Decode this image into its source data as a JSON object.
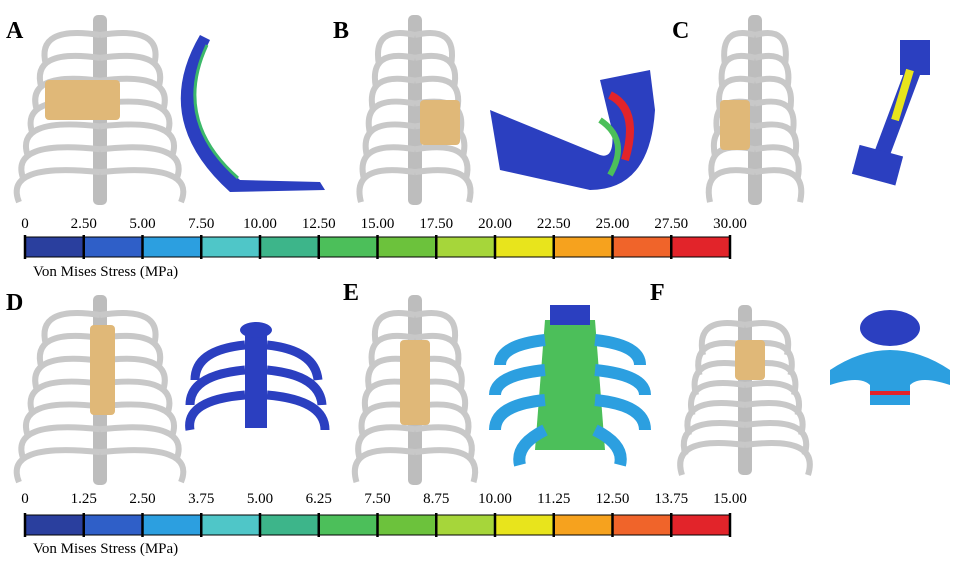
{
  "panels": [
    {
      "label": "A"
    },
    {
      "label": "B"
    },
    {
      "label": "C"
    },
    {
      "label": "D"
    },
    {
      "label": "E"
    },
    {
      "label": "F"
    }
  ],
  "colorbars": [
    {
      "ticks": [
        "0",
        "2.50",
        "5.00",
        "7.50",
        "10.00",
        "12.50",
        "15.00",
        "17.50",
        "20.00",
        "22.50",
        "25.00",
        "27.50",
        "30.00"
      ],
      "caption": "Von Mises Stress (MPa)"
    },
    {
      "ticks": [
        "0",
        "1.25",
        "2.50",
        "3.75",
        "5.00",
        "6.25",
        "7.50",
        "8.75",
        "10.00",
        "11.25",
        "12.50",
        "13.75",
        "15.00"
      ],
      "caption": "Von Mises Stress (MPa)"
    }
  ],
  "colors": [
    "#2a3f9e",
    "#2f5fc8",
    "#2c9fe0",
    "#4fc6c8",
    "#3db58a",
    "#4cbf5a",
    "#6cc23c",
    "#a6d63a",
    "#e8e41c",
    "#f6a21e",
    "#f0642a",
    "#e2242a"
  ]
}
